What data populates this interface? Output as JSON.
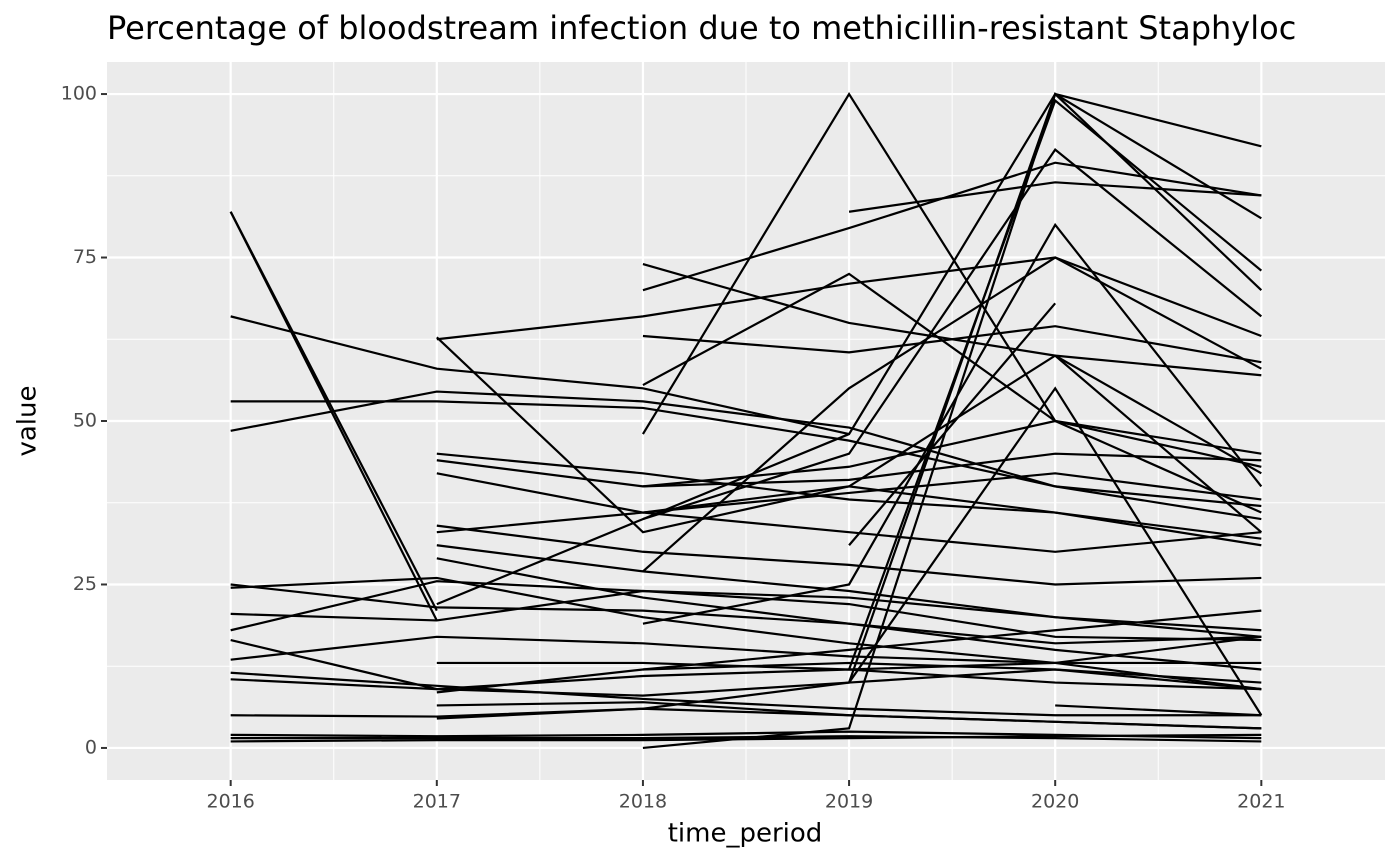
{
  "chart_data": {
    "type": "line",
    "title": "Percentage of bloodstream infection due to methicillin-resistant Staphyloc",
    "x_label": "time_period",
    "y_label": "value",
    "x": [
      2016,
      2017,
      2018,
      2019,
      2020,
      2021
    ],
    "xlim": [
      2015.4,
      2021.6
    ],
    "xticks": [
      2016,
      2017,
      2018,
      2019,
      2020,
      2021
    ],
    "xminorticks": [
      2016.5,
      2017.5,
      2018.5,
      2019.5,
      2020.5
    ],
    "ylim": [
      -4.9,
      104.9
    ],
    "yticks": [
      0,
      25,
      50,
      75,
      100
    ],
    "yminorticks": [
      12.5,
      37.5,
      62.5,
      87.5
    ],
    "grid": true,
    "color": "#000000",
    "series": [
      {
        "values": [
          82,
          19.5,
          null,
          null,
          null,
          null
        ]
      },
      {
        "values": [
          82,
          21,
          null,
          null,
          null,
          null
        ]
      },
      {
        "values": [
          66,
          58,
          55,
          48,
          null,
          null
        ]
      },
      {
        "values": [
          53,
          53,
          52,
          47,
          40,
          35
        ]
      },
      {
        "values": [
          48.5,
          54.5,
          53,
          49,
          40,
          37
        ]
      },
      {
        "values": [
          25,
          21.5,
          21,
          19,
          16,
          17
        ]
      },
      {
        "values": [
          24.5,
          26,
          20,
          16,
          13,
          9
        ]
      },
      {
        "values": [
          20.5,
          19.5,
          24,
          22,
          17,
          16.5
        ]
      },
      {
        "values": [
          18,
          25.5,
          24,
          23,
          20,
          18
        ]
      },
      {
        "values": [
          16.5,
          9,
          8,
          10,
          12,
          10
        ]
      },
      {
        "values": [
          13.5,
          17,
          16,
          14,
          13,
          13
        ]
      },
      {
        "values": [
          11.5,
          9.5,
          7.5,
          6,
          5,
          5
        ]
      },
      {
        "values": [
          10.5,
          9,
          11,
          12,
          10,
          9
        ]
      },
      {
        "values": [
          5,
          4.8,
          6,
          5,
          4,
          3
        ]
      },
      {
        "values": [
          2,
          1.8,
          2,
          2.5,
          2,
          1.5
        ]
      },
      {
        "values": [
          1.5,
          1.5,
          1.5,
          1.8,
          1.5,
          1
        ]
      },
      {
        "values": [
          1,
          1.2,
          1.2,
          1.5,
          1.8,
          2
        ]
      },
      {
        "values": [
          null,
          62.5,
          66,
          71,
          75,
          63
        ]
      },
      {
        "values": [
          null,
          62.8,
          33,
          40,
          60,
          42
        ]
      },
      {
        "values": [
          null,
          45,
          42,
          38,
          36,
          32
        ]
      },
      {
        "values": [
          null,
          44,
          40,
          41,
          45,
          44
        ]
      },
      {
        "values": [
          null,
          42,
          36,
          33,
          30,
          33
        ]
      },
      {
        "values": [
          null,
          34,
          30,
          28,
          25,
          26
        ]
      },
      {
        "values": [
          null,
          33,
          36,
          39,
          42,
          38
        ]
      },
      {
        "values": [
          null,
          31,
          27,
          24,
          20,
          17
        ]
      },
      {
        "values": [
          null,
          29,
          23,
          19,
          15,
          12
        ]
      },
      {
        "values": [
          null,
          22,
          35,
          48,
          100,
          92
        ]
      },
      {
        "values": [
          null,
          13,
          13,
          12,
          13,
          17
        ]
      },
      {
        "values": [
          null,
          8.5,
          12,
          15,
          18,
          21
        ]
      },
      {
        "values": [
          null,
          6.5,
          7,
          5,
          4,
          3
        ]
      },
      {
        "values": [
          null,
          4.5,
          6,
          10,
          55,
          5
        ]
      },
      {
        "values": [
          null,
          null,
          74,
          65,
          60,
          57
        ]
      },
      {
        "values": [
          null,
          null,
          70,
          79.5,
          89.5,
          84.5
        ]
      },
      {
        "values": [
          null,
          null,
          63,
          60.5,
          64.5,
          59
        ]
      },
      {
        "values": [
          null,
          null,
          55.5,
          72.5,
          50,
          45
        ]
      },
      {
        "values": [
          null,
          null,
          48,
          100,
          50,
          36
        ]
      },
      {
        "values": [
          null,
          null,
          27,
          55,
          75,
          58
        ]
      },
      {
        "values": [
          null,
          null,
          35,
          45,
          91.5,
          66
        ]
      },
      {
        "values": [
          null,
          null,
          19,
          25,
          80,
          40
        ]
      },
      {
        "values": [
          null,
          null,
          0,
          3,
          100,
          70
        ]
      },
      {
        "values": [
          null,
          null,
          36,
          40,
          36,
          31
        ]
      },
      {
        "values": [
          null,
          null,
          40,
          43,
          50,
          43
        ]
      },
      {
        "values": [
          null,
          null,
          12,
          13,
          12,
          9
        ]
      },
      {
        "values": [
          null,
          null,
          null,
          82,
          86.5,
          84.5
        ]
      },
      {
        "values": [
          null,
          null,
          null,
          10,
          100,
          81
        ]
      },
      {
        "values": [
          null,
          null,
          null,
          12,
          99,
          73
        ]
      },
      {
        "values": [
          null,
          null,
          null,
          31,
          68,
          null
        ]
      },
      {
        "values": [
          null,
          null,
          null,
          null,
          60,
          33
        ]
      },
      {
        "values": [
          null,
          null,
          null,
          null,
          6.5,
          5
        ]
      }
    ]
  }
}
